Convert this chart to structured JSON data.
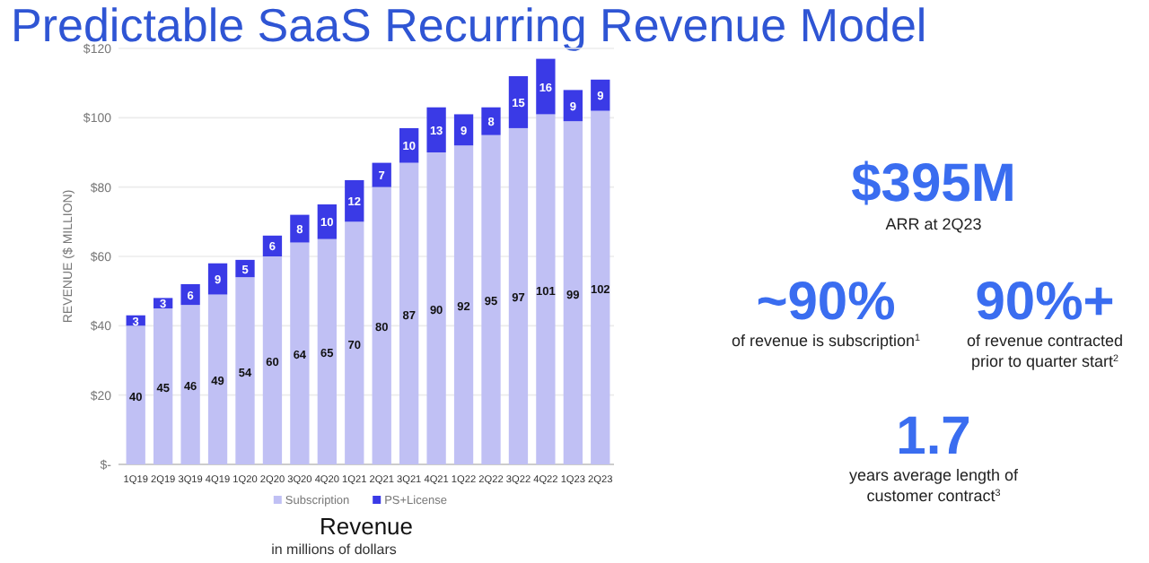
{
  "chart_data": {
    "type": "bar",
    "title": "Predictable SaaS Recurring Revenue Model",
    "xlabel": "Revenue",
    "ylabel": "REVENUE ($ MILLION)",
    "categories": [
      "1Q19",
      "2Q19",
      "3Q19",
      "4Q19",
      "1Q20",
      "2Q20",
      "3Q20",
      "4Q20",
      "1Q21",
      "2Q21",
      "3Q21",
      "4Q21",
      "1Q22",
      "2Q22",
      "3Q22",
      "4Q22",
      "1Q23",
      "2Q23"
    ],
    "series": [
      {
        "name": "Subscription",
        "color": "#c0c0f4",
        "values": [
          40,
          45,
          46,
          49,
          54,
          60,
          64,
          65,
          70,
          80,
          87,
          90,
          92,
          95,
          97,
          101,
          99,
          102
        ]
      },
      {
        "name": "PS+License",
        "color": "#3a3ae6",
        "values": [
          3,
          3,
          6,
          9,
          5,
          6,
          8,
          10,
          12,
          7,
          10,
          13,
          9,
          8,
          15,
          16,
          9,
          9
        ]
      }
    ],
    "stacked": true,
    "data_labels": true,
    "grid": "y",
    "legend": "bottom",
    "ylim": [
      0,
      120
    ],
    "yticks": [
      {
        "value": 0,
        "label": "$-"
      },
      {
        "value": 20,
        "label": "$20"
      },
      {
        "value": 40,
        "label": "$40"
      },
      {
        "value": 60,
        "label": "$60"
      },
      {
        "value": 80,
        "label": "$80"
      },
      {
        "value": 100,
        "label": "$100"
      },
      {
        "value": 120,
        "label": "$120"
      }
    ],
    "annotations": [
      "in millions of dollars",
      "$395M",
      "ARR at 2Q23",
      "~90%",
      "of revenue is subscription$^{1}$",
      "90%+",
      "of revenue contracted prior to quarter start$^{2}$",
      "1.7",
      "years average length of customer contract$^{3}$"
    ]
  }
}
